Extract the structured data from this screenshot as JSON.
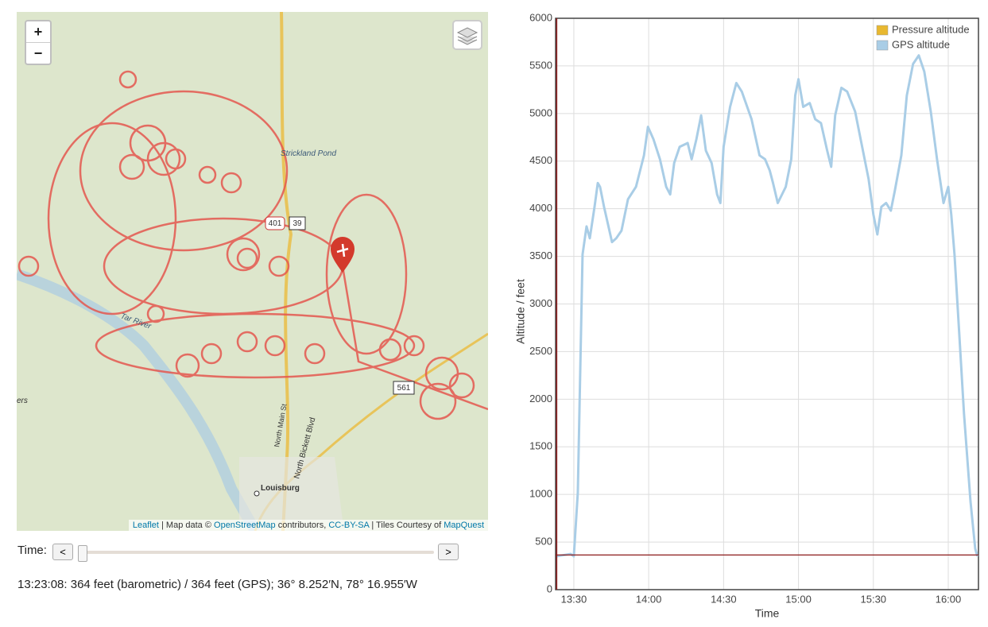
{
  "map": {
    "zoom_in": "+",
    "zoom_out": "−",
    "labels": [
      "Strickland Pond",
      "401",
      "39",
      "561",
      "Tar River",
      "North Main St",
      "North Bickett Blvd",
      "Louisburg",
      "ers"
    ],
    "attribution": [
      "Leaflet",
      "| Map data ©",
      "OpenStreetMap",
      "contributors,",
      "CC-BY-SA",
      "| Tiles Courtesy of",
      "MapQuest"
    ]
  },
  "controls": {
    "time_label": "Time:",
    "prev": "<",
    "next": ">"
  },
  "status": "13:23:08: 364 feet (barometric) / 364 feet (GPS); 36° 8.252′N, 78° 16.955′W",
  "chart_data": {
    "type": "line",
    "x_label": "Time",
    "y_label": "Altitude / feet",
    "x": [
      803,
      808.7,
      810,
      811.6,
      813.5,
      815.1,
      816.4,
      818.3,
      819.6,
      820.5,
      822.1,
      825.3,
      827,
      829.1,
      831.7,
      834.9,
      838.1,
      839.7,
      841.9,
      844.5,
      847,
      848.6,
      850.2,
      852.4,
      855.6,
      857.2,
      859.1,
      861,
      862.9,
      865.2,
      867.4,
      868.7,
      870,
      872.6,
      875.1,
      877.3,
      881.2,
      884.4,
      886.6,
      888.5,
      889.8,
      891.7,
      894.9,
      897.1,
      898.7,
      900,
      901.9,
      904.5,
      906.7,
      909,
      911.5,
      913.1,
      914.7,
      917.2,
      919.5,
      922.7,
      924.9,
      928.1,
      930,
      931.6,
      933.2,
      935.1,
      937,
      938.6,
      941.2,
      943.4,
      945.9,
      948.2,
      950.4,
      953,
      955.5,
      958.1,
      960,
      961.2,
      962.5,
      964.4,
      966.3,
      968.9,
      970.8,
      971.7
    ],
    "series": [
      {
        "name": "Pressure altitude",
        "color": "#e8b830",
        "values": [
          350,
          375,
          350,
          1020,
          3520,
          3815,
          3690,
          4020,
          4270,
          4230,
          4020,
          3650,
          3690,
          3770,
          4100,
          4230,
          4560,
          4860,
          4730,
          4520,
          4230,
          4150,
          4480,
          4650,
          4690,
          4520,
          4730,
          4980,
          4610,
          4480,
          4150,
          4060,
          4650,
          5070,
          5320,
          5230,
          4940,
          4560,
          4520,
          4400,
          4270,
          4060,
          4230,
          4520,
          5190,
          5360,
          5070,
          5110,
          4940,
          4900,
          4610,
          4440,
          4980,
          5270,
          5230,
          5020,
          4730,
          4310,
          3940,
          3730,
          4020,
          4060,
          3980,
          4190,
          4560,
          5190,
          5520,
          5610,
          5440,
          5020,
          4520,
          4060,
          4230,
          3940,
          3520,
          2690,
          1850,
          930,
          430,
          350
        ]
      },
      {
        "name": "GPS altitude",
        "color": "#a9cde6",
        "values": [
          350,
          375,
          350,
          1020,
          3520,
          3815,
          3690,
          4020,
          4270,
          4230,
          4020,
          3650,
          3690,
          3770,
          4100,
          4230,
          4560,
          4860,
          4730,
          4520,
          4230,
          4150,
          4480,
          4650,
          4690,
          4520,
          4730,
          4980,
          4610,
          4480,
          4150,
          4060,
          4650,
          5070,
          5320,
          5230,
          4940,
          4560,
          4520,
          4400,
          4270,
          4060,
          4230,
          4520,
          5190,
          5360,
          5070,
          5110,
          4940,
          4900,
          4610,
          4440,
          4980,
          5270,
          5230,
          5020,
          4730,
          4310,
          3940,
          3730,
          4020,
          4060,
          3980,
          4190,
          4560,
          5190,
          5520,
          5610,
          5440,
          5020,
          4520,
          4060,
          4230,
          3940,
          3520,
          2690,
          1850,
          930,
          430,
          350
        ]
      }
    ],
    "xlim": [
      802.7,
      972.1
    ],
    "xticks": [
      {
        "value": 810,
        "label": "13:30"
      },
      {
        "value": 840,
        "label": "14:00"
      },
      {
        "value": 870,
        "label": "14:30"
      },
      {
        "value": 900,
        "label": "15:00"
      },
      {
        "value": 930,
        "label": "15:30"
      },
      {
        "value": 960,
        "label": "16:00"
      }
    ],
    "ylim": [
      0,
      6000
    ],
    "yticks": [
      0,
      500,
      1000,
      1500,
      2000,
      2500,
      3000,
      3500,
      4000,
      4500,
      5000,
      5500,
      6000
    ],
    "grid": true,
    "legend": "top-right",
    "cursor": {
      "x": 803.13,
      "y": 364,
      "color": "#8b1a1a"
    }
  }
}
